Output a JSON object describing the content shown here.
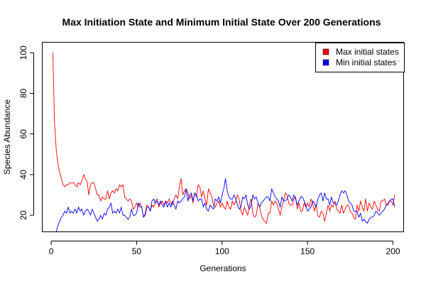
{
  "chart_data": {
    "type": "line",
    "title": "Max Initiation State and Minimum Initial State Over 200 Generations",
    "xlabel": "Generations",
    "ylabel": "Species Abundance",
    "xlim": [
      -5,
      206
    ],
    "ylim": [
      12,
      105
    ],
    "x_ticks": [
      0,
      50,
      100,
      150,
      200
    ],
    "y_ticks": [
      20,
      40,
      60,
      80,
      100
    ],
    "grid": false,
    "legend_position": "top-right",
    "x": [
      1,
      2,
      3,
      4,
      5,
      6,
      7,
      8,
      9,
      10,
      11,
      12,
      13,
      14,
      15,
      16,
      17,
      18,
      19,
      20,
      21,
      22,
      23,
      24,
      25,
      26,
      27,
      28,
      29,
      30,
      31,
      32,
      33,
      34,
      35,
      36,
      37,
      38,
      39,
      40,
      41,
      42,
      43,
      44,
      45,
      46,
      47,
      48,
      49,
      50,
      51,
      52,
      53,
      54,
      55,
      56,
      57,
      58,
      59,
      60,
      61,
      62,
      63,
      64,
      65,
      66,
      67,
      68,
      69,
      70,
      71,
      72,
      73,
      74,
      75,
      76,
      77,
      78,
      79,
      80,
      81,
      82,
      83,
      84,
      85,
      86,
      87,
      88,
      89,
      90,
      91,
      92,
      93,
      94,
      95,
      96,
      97,
      98,
      99,
      100,
      101,
      102,
      103,
      104,
      105,
      106,
      107,
      108,
      109,
      110,
      111,
      112,
      113,
      114,
      115,
      116,
      117,
      118,
      119,
      120,
      121,
      122,
      123,
      124,
      125,
      126,
      127,
      128,
      129,
      130,
      131,
      132,
      133,
      134,
      135,
      136,
      137,
      138,
      139,
      140,
      141,
      142,
      143,
      144,
      145,
      146,
      147,
      148,
      149,
      150,
      151,
      152,
      153,
      154,
      155,
      156,
      157,
      158,
      159,
      160,
      161,
      162,
      163,
      164,
      165,
      166,
      167,
      168,
      169,
      170,
      171,
      172,
      173,
      174,
      175,
      176,
      177,
      178,
      179,
      180,
      181,
      182,
      183,
      184,
      185,
      186,
      187,
      188,
      189,
      190,
      191,
      192,
      193,
      194,
      195,
      196,
      197,
      198,
      199,
      200,
      201
    ],
    "series": [
      {
        "name": "Max initial states",
        "color": "#ff0000",
        "values": [
          100,
          65,
          52,
          45,
          41,
          38,
          35,
          34,
          35,
          35,
          36,
          36,
          36,
          35,
          34,
          36,
          35,
          37,
          40,
          38,
          37,
          30,
          35,
          36,
          36,
          33,
          30,
          30,
          27,
          29,
          28,
          28,
          32,
          28,
          31,
          32,
          31,
          33,
          32,
          35,
          34,
          35,
          29,
          28,
          27,
          28,
          27,
          23,
          24,
          26,
          24,
          26,
          24,
          19,
          21,
          25,
          24,
          22,
          25,
          24,
          27,
          28,
          24,
          26,
          27,
          25,
          27,
          26,
          28,
          26,
          25,
          28,
          30,
          28,
          34,
          38,
          30,
          32,
          33,
          31,
          28,
          30,
          26,
          31,
          29,
          35,
          34,
          29,
          32,
          28,
          25,
          33,
          31,
          29,
          25,
          24,
          26,
          27,
          24,
          26,
          24,
          23,
          27,
          24,
          23,
          27,
          25,
          27,
          30,
          28,
          22,
          20,
          24,
          22,
          20,
          25,
          28,
          21,
          19,
          20,
          26,
          24,
          20,
          18,
          17,
          16,
          21,
          21,
          27,
          25,
          27,
          26,
          23,
          20,
          24,
          27,
          31,
          30,
          26,
          25,
          25,
          28,
          29,
          23,
          26,
          22,
          22,
          26,
          24,
          26,
          24,
          28,
          26,
          22,
          25,
          20,
          19,
          22,
          21,
          17,
          21,
          25,
          22,
          25,
          24,
          27,
          23,
          22,
          21,
          25,
          21,
          23,
          25,
          25,
          22,
          21,
          19,
          18,
          25,
          22,
          27,
          24,
          22,
          28,
          22,
          26,
          24,
          23,
          27,
          25,
          23,
          22,
          27,
          27,
          28,
          25,
          26,
          27,
          27,
          25,
          30
        ]
      },
      {
        "name": "Min initial states",
        "color": "#0000ff",
        "values": [
          5,
          8,
          12,
          15,
          17,
          19,
          20,
          22,
          21,
          24,
          21,
          22,
          21,
          23,
          21,
          24,
          22,
          23,
          20,
          22,
          23,
          22,
          20,
          23,
          21,
          19,
          17,
          18,
          20,
          18,
          21,
          20,
          23,
          24,
          26,
          21,
          22,
          21,
          23,
          21,
          24,
          20,
          20,
          19,
          18,
          19,
          23,
          20,
          20,
          21,
          26,
          24,
          24,
          19,
          20,
          24,
          24,
          22,
          27,
          28,
          26,
          27,
          25,
          27,
          25,
          24,
          27,
          24,
          26,
          24,
          27,
          25,
          23,
          27,
          26,
          27,
          28,
          29,
          33,
          27,
          30,
          31,
          27,
          31,
          30,
          27,
          28,
          28,
          24,
          26,
          23,
          22,
          25,
          24,
          23,
          28,
          27,
          29,
          26,
          30,
          33,
          38,
          32,
          29,
          28,
          28,
          30,
          28,
          25,
          23,
          24,
          29,
          28,
          30,
          25,
          23,
          25,
          30,
          28,
          29,
          26,
          24,
          26,
          27,
          28,
          29,
          29,
          27,
          33,
          31,
          29,
          28,
          27,
          24,
          29,
          27,
          27,
          28,
          30,
          29,
          27,
          30,
          28,
          25,
          27,
          29,
          29,
          27,
          25,
          22,
          23,
          24,
          27,
          26,
          24,
          28,
          30,
          31,
          27,
          31,
          28,
          28,
          25,
          29,
          26,
          26,
          25,
          27,
          30,
          32,
          31,
          32,
          30,
          27,
          26,
          25,
          22,
          22,
          22,
          19,
          21,
          17,
          18,
          17,
          16,
          18,
          19,
          19,
          20,
          22,
          21,
          20,
          21,
          22,
          23,
          25,
          25,
          27,
          28,
          28,
          24
        ]
      }
    ]
  }
}
